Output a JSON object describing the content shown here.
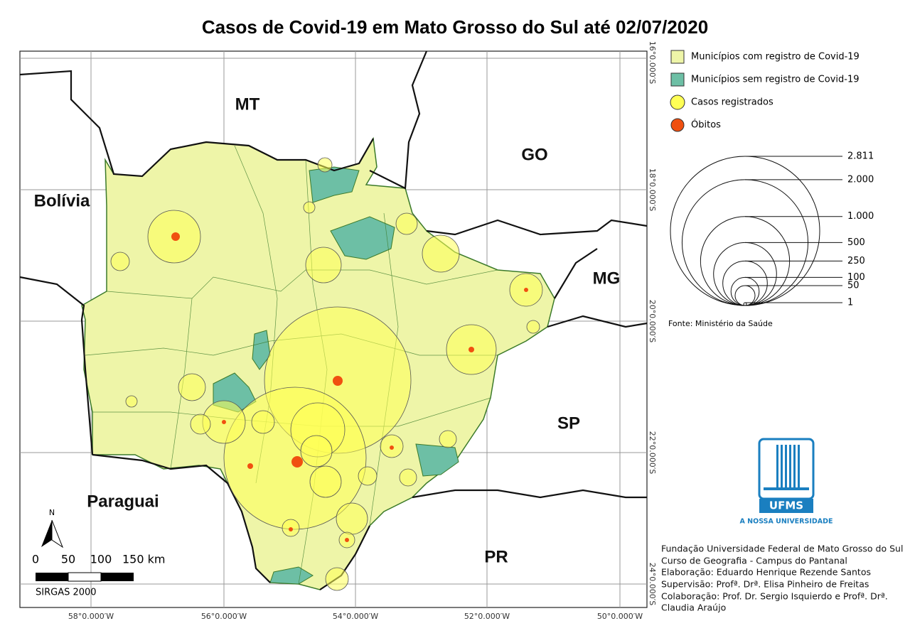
{
  "title": "Casos de Covid-19 em Mato Grosso do Sul até 02/07/2020",
  "map": {
    "labels": [
      "MT",
      "GO",
      "Bolívia",
      "MG",
      "SP",
      "Paraguai",
      "PR"
    ],
    "lon_labels": [
      "58°0.000′W",
      "56°0.000′W",
      "54°0.000′W",
      "52°0.000′W",
      "50°0.000′W"
    ],
    "lat_labels": [
      "16°0.000′S",
      "18°0.000′S",
      "20°0.000′S",
      "22°0.000′S",
      "24°0.000′S"
    ],
    "north": "N",
    "scale": {
      "ticks": [
        "0",
        "50",
        "100",
        "150 km"
      ],
      "crs": "SIRGAS 2000"
    }
  },
  "legend": {
    "items": [
      "Municípios com registro de Covid-19",
      "Municípios sem registro de Covid-19",
      "Casos registrados",
      "Óbitos"
    ],
    "sizes": [
      {
        "value": 2811,
        "label": "2.811"
      },
      {
        "value": 2000,
        "label": "2.000"
      },
      {
        "value": 1000,
        "label": "1.000"
      },
      500,
      250,
      100,
      50,
      1
    ],
    "source": "Fonte: Ministério da Saúde"
  },
  "logo": {
    "name": "UFMS",
    "tagline": "A NOSSA UNIVERSIDADE"
  },
  "credits": [
    "Fundação Universidade Federal de Mato Grosso do Sul",
    "Curso de Geografia - Campus do  Pantanal",
    "Elaboração: Eduardo Henrique Rezende Santos",
    "Supervisão: Profª. Drª. Elisa Pinheiro de Freitas",
    "Colaboração: Prof. Dr. Sergio Isquierdo e Profª. Drª.",
    "Claudia Araújo"
  ]
}
